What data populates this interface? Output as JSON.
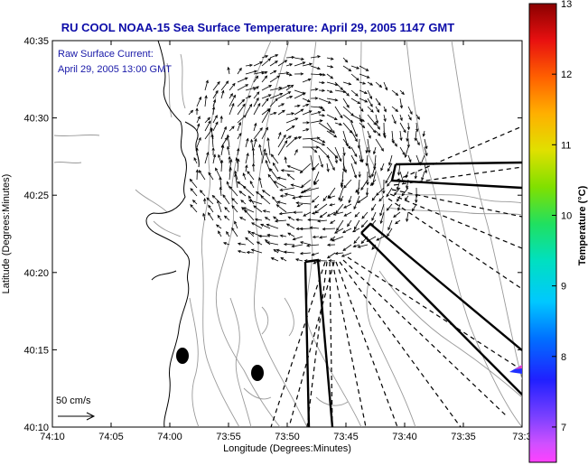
{
  "title": "RU COOL  NOAA-15  Sea Surface Temperature:  April 29, 2005 1147 GMT",
  "annotation": {
    "line1": "Raw Surface Current:",
    "line2": "April 29, 2005 13:00 GMT"
  },
  "scale": {
    "label": "50 cm/s"
  },
  "axes": {
    "xlabel": "Longitude (Degrees:Minutes)",
    "ylabel": "Latitude (Degrees:Minutes)",
    "xticks": [
      "74:10",
      "74:05",
      "74:00",
      "73:55",
      "73:50",
      "73:45",
      "73:40",
      "73:35",
      "73:3"
    ],
    "yticks": [
      "40:35",
      "40:30",
      "40:25",
      "40:20",
      "40:15",
      "40:10"
    ]
  },
  "colorbar": {
    "title": "Temperature (°C)",
    "ticks": [
      "13",
      "12",
      "11",
      "10",
      "9",
      "8",
      "7"
    ],
    "range": [
      6.5,
      13
    ]
  },
  "colors": {
    "title": "#0c0ca8",
    "annotation": "#1818a8",
    "contour": "#9a9a9a"
  }
}
